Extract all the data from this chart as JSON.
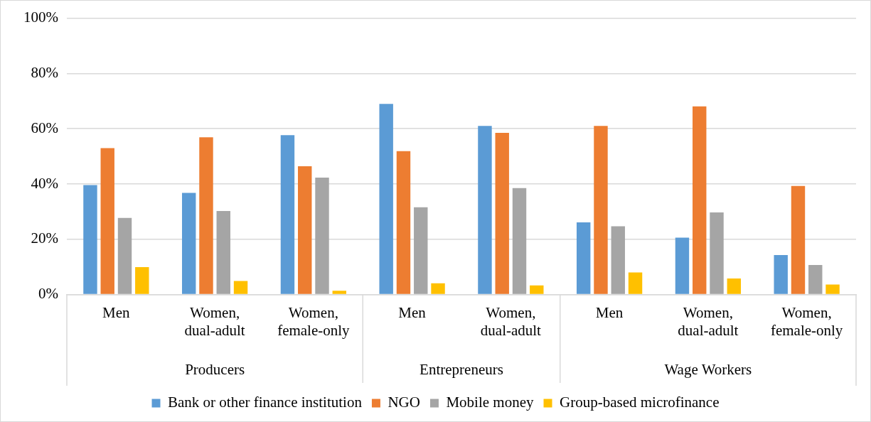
{
  "chart_data": {
    "type": "bar",
    "categories": [
      "Men",
      "Women, dual-adult",
      "Women, female-only",
      "Men",
      "Women, dual-adult",
      "Men",
      "Women, dual-adult",
      "Women, female-only"
    ],
    "annotations": [
      "Producers",
      "Entrepreneurs",
      "Wage Workers"
    ],
    "series": [
      {
        "name": "Bank or other finance institution",
        "color": "#5b9bd5",
        "values": [
          39.6,
          36.8,
          57.7,
          69,
          61,
          26.1,
          20.6,
          14.3
        ]
      },
      {
        "name": "NGO",
        "color": "#ed7d31",
        "values": [
          53,
          56.9,
          46.4,
          51.9,
          58.5,
          61,
          68.1,
          39.3
        ]
      },
      {
        "name": "Mobile money",
        "color": "#a5a5a5",
        "values": [
          27.7,
          30.2,
          42.3,
          31.6,
          38.5,
          24.7,
          29.7,
          10.7
        ]
      },
      {
        "name": "Group-based microfinance",
        "color": "#ffc000",
        "values": [
          9.9,
          4.9,
          1.4,
          4.1,
          3.3,
          8,
          5.8,
          3.6
        ]
      }
    ],
    "ylim": [
      0,
      100
    ],
    "yticks": [
      {
        "value": 0,
        "label": "0%"
      },
      {
        "value": 20,
        "label": "20%"
      },
      {
        "value": 40,
        "label": "40%"
      },
      {
        "value": 60,
        "label": "60%"
      },
      {
        "value": 80,
        "label": "80%"
      },
      {
        "value": 100,
        "label": "100%"
      }
    ],
    "grid": "y",
    "legend": "bottom"
  }
}
